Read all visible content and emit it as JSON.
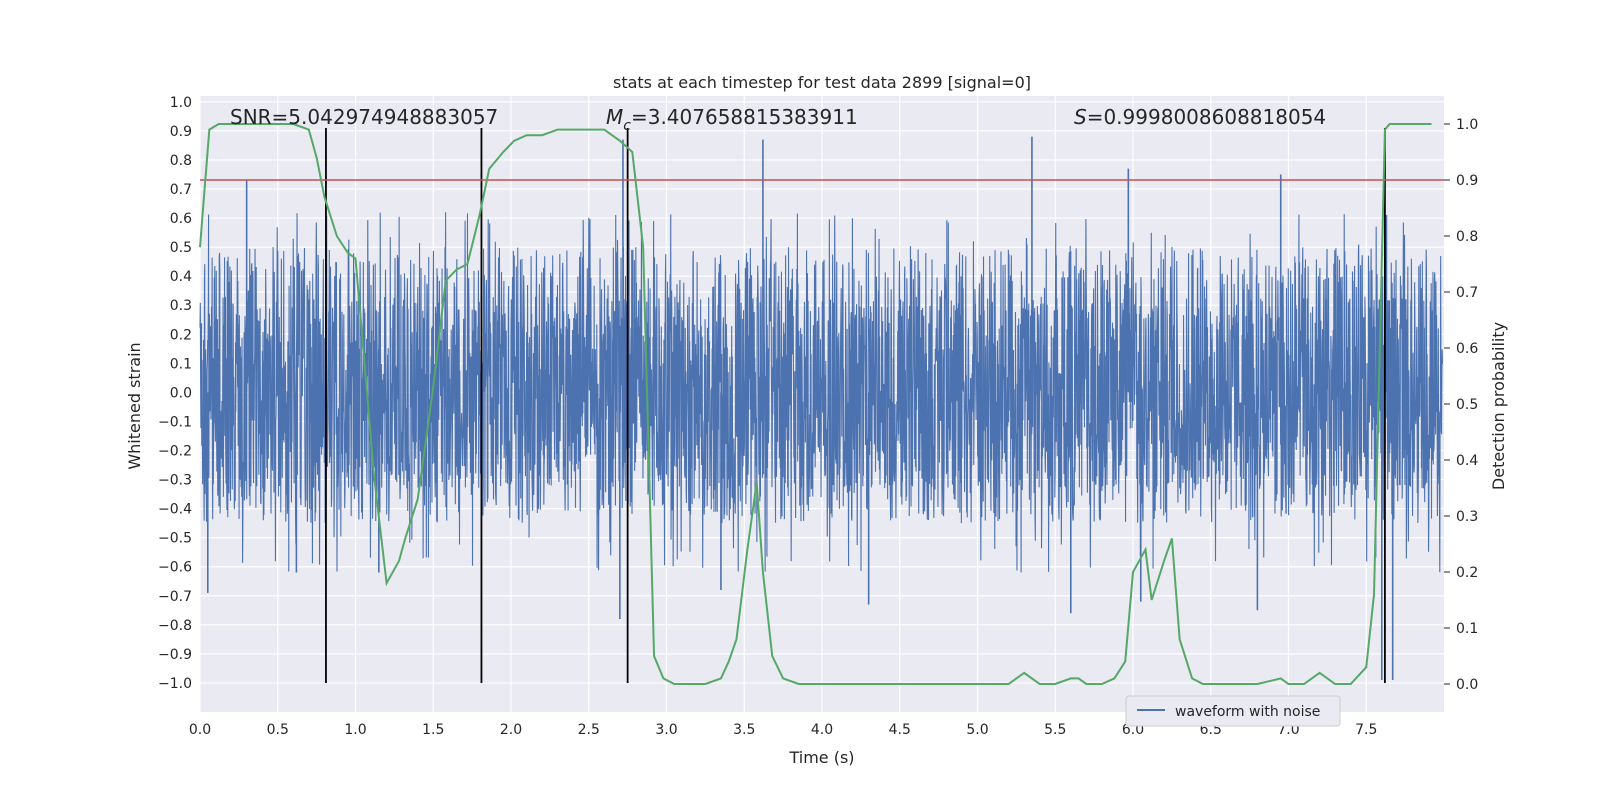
{
  "chart_data": {
    "type": "line",
    "title": "stats at each timestep for test data 2899 [signal=0]",
    "xlabel": "Time (s)",
    "ylabel": "Whitened strain",
    "y2label": "Detection probability",
    "xlim": [
      0.0,
      8.0
    ],
    "ylim": [
      -1.1,
      1.02
    ],
    "y2lim": [
      -0.05,
      1.05
    ],
    "xticks": [
      "0.0",
      "0.5",
      "1.0",
      "1.5",
      "2.0",
      "2.5",
      "3.0",
      "3.5",
      "4.0",
      "4.5",
      "5.0",
      "5.5",
      "6.0",
      "6.5",
      "7.0",
      "7.5"
    ],
    "yticks": [
      "1.0",
      "0.9",
      "0.8",
      "0.7",
      "0.6",
      "0.5",
      "0.4",
      "0.3",
      "0.2",
      "0.1",
      "0.0",
      "−0.1",
      "−0.2",
      "−0.3",
      "−0.4",
      "−0.5",
      "−0.6",
      "−0.7",
      "−0.8",
      "−0.9",
      "−1.0"
    ],
    "y2ticks": [
      "1.0",
      "0.9",
      "0.8",
      "0.7",
      "0.6",
      "0.5",
      "0.4",
      "0.3",
      "0.2",
      "0.1",
      "0.0"
    ],
    "annotations": {
      "snr": "SNR=5.042974948883057",
      "mc_symbol": "M",
      "mc_sub": "c",
      "mc_value": "=3.407658815383911",
      "s_symbol": "S",
      "s_value": "=0.9998008608818054"
    },
    "grid": true,
    "legend": {
      "entries": [
        "waveform with noise"
      ],
      "placement": "lower-right"
    },
    "colors": {
      "waveform": "#4c72b0",
      "probability": "#55a868",
      "threshold": "#c44e52",
      "marker": "#000000",
      "axes_bg": "#eaeaf2",
      "grid": "#ffffff"
    },
    "series": [
      {
        "name": "waveform with noise",
        "style": "noise band",
        "core_range": [
          -0.33,
          0.33
        ],
        "typical_peak_range": [
          -0.45,
          0.5
        ],
        "spikes": [
          {
            "x": 0.05,
            "y": -0.69
          },
          {
            "x": 0.3,
            "y": 0.73
          },
          {
            "x": 0.62,
            "y": -0.62
          },
          {
            "x": 1.15,
            "y": -0.62
          },
          {
            "x": 2.72,
            "y": 0.87
          },
          {
            "x": 2.7,
            "y": -0.78
          },
          {
            "x": 3.62,
            "y": 0.87
          },
          {
            "x": 3.35,
            "y": -0.68
          },
          {
            "x": 4.3,
            "y": -0.73
          },
          {
            "x": 5.35,
            "y": 0.88
          },
          {
            "x": 5.6,
            "y": -0.76
          },
          {
            "x": 5.97,
            "y": 0.77
          },
          {
            "x": 6.05,
            "y": -0.72
          },
          {
            "x": 6.8,
            "y": -0.75
          },
          {
            "x": 6.95,
            "y": 0.75
          },
          {
            "x": 7.6,
            "y": -0.99
          },
          {
            "x": 7.63,
            "y": 0.61
          },
          {
            "x": 7.67,
            "y": -0.99
          }
        ]
      },
      {
        "name": "",
        "axis": "right",
        "x": [
          0.0,
          0.06,
          0.12,
          0.2,
          0.3,
          0.4,
          0.5,
          0.6,
          0.7,
          0.75,
          0.8,
          0.88,
          0.95,
          1.0,
          1.08,
          1.12,
          1.2,
          1.28,
          1.32,
          1.4,
          1.5,
          1.58,
          1.65,
          1.72,
          1.8,
          1.86,
          1.95,
          2.02,
          2.1,
          2.2,
          2.3,
          2.4,
          2.5,
          2.6,
          2.7,
          2.78,
          2.85,
          2.92,
          2.98,
          3.05,
          3.15,
          3.25,
          3.35,
          3.4,
          3.45,
          3.52,
          3.58,
          3.62,
          3.68,
          3.75,
          3.85,
          4.0,
          4.2,
          4.4,
          4.6,
          4.8,
          5.0,
          5.1,
          5.2,
          5.25,
          5.3,
          5.35,
          5.4,
          5.5,
          5.6,
          5.65,
          5.7,
          5.8,
          5.88,
          5.95,
          6.0,
          6.08,
          6.12,
          6.2,
          6.25,
          6.3,
          6.38,
          6.45,
          6.6,
          6.8,
          6.95,
          7.0,
          7.1,
          7.2,
          7.25,
          7.3,
          7.4,
          7.5,
          7.55,
          7.62,
          7.65,
          7.7,
          7.8,
          7.92
        ],
        "y": [
          0.78,
          0.99,
          1.0,
          1.0,
          1.0,
          1.0,
          1.0,
          1.0,
          0.99,
          0.94,
          0.87,
          0.8,
          0.77,
          0.76,
          0.5,
          0.37,
          0.18,
          0.22,
          0.26,
          0.33,
          0.53,
          0.72,
          0.74,
          0.75,
          0.84,
          0.92,
          0.95,
          0.97,
          0.98,
          0.98,
          0.99,
          0.99,
          0.99,
          0.99,
          0.97,
          0.95,
          0.78,
          0.05,
          0.01,
          0.0,
          0.0,
          0.0,
          0.01,
          0.04,
          0.08,
          0.24,
          0.36,
          0.2,
          0.05,
          0.01,
          0.0,
          0.0,
          0.0,
          0.0,
          0.0,
          0.0,
          0.0,
          0.0,
          0.0,
          0.01,
          0.02,
          0.01,
          0.0,
          0.0,
          0.01,
          0.01,
          0.0,
          0.0,
          0.01,
          0.04,
          0.2,
          0.24,
          0.15,
          0.22,
          0.26,
          0.08,
          0.01,
          0.0,
          0.0,
          0.0,
          0.01,
          0.0,
          0.0,
          0.02,
          0.01,
          0.0,
          0.0,
          0.03,
          0.16,
          0.99,
          1.0,
          1.0,
          1.0,
          1.0
        ]
      },
      {
        "name": "",
        "style": "horizontal line",
        "axis": "right",
        "y": 0.9
      }
    ],
    "vertical_markers": [
      0.81,
      1.81,
      2.75,
      7.62
    ]
  }
}
